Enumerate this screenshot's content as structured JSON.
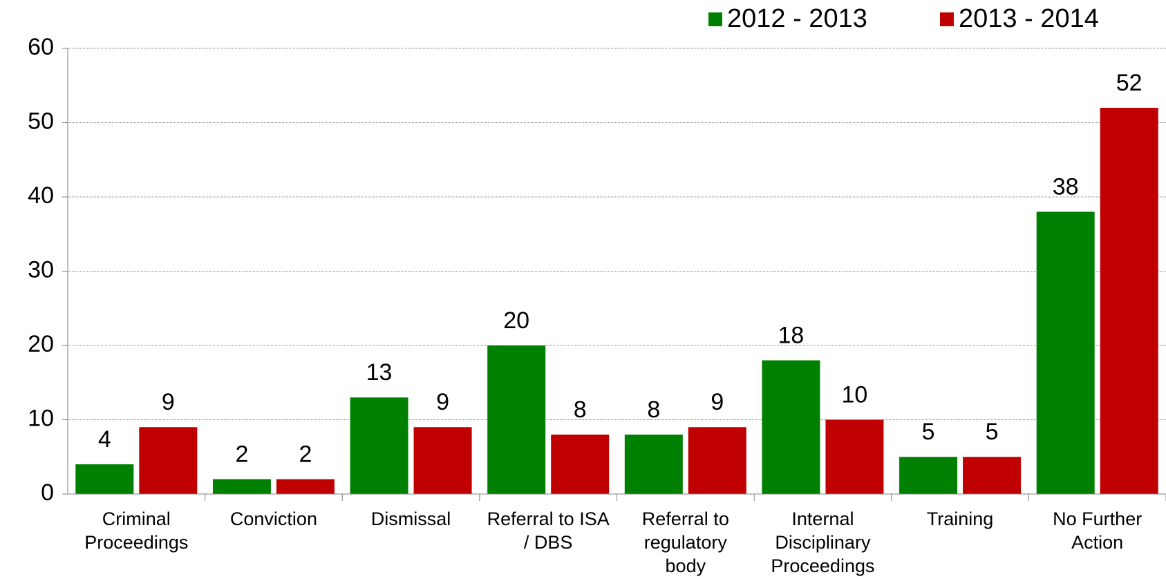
{
  "chart_data": {
    "type": "bar",
    "categories": [
      "Criminal Proceedings",
      "Conviction",
      "Dismissal",
      "Referral to ISA / DBS",
      "Referral to regulatory body",
      "Internal Disciplinary Proceedings",
      "Training",
      "No Further Action"
    ],
    "series": [
      {
        "name": "2012 - 2013",
        "color": "#008000",
        "values": [
          4,
          2,
          13,
          20,
          8,
          18,
          5,
          38
        ]
      },
      {
        "name": "2013 - 2014",
        "color": "#c00000",
        "values": [
          9,
          2,
          9,
          8,
          9,
          10,
          5,
          52
        ]
      }
    ],
    "ylim": [
      0,
      60
    ],
    "yticks": [
      0,
      10,
      20,
      30,
      40,
      50,
      60
    ],
    "grid": true,
    "legend": "top-right"
  }
}
